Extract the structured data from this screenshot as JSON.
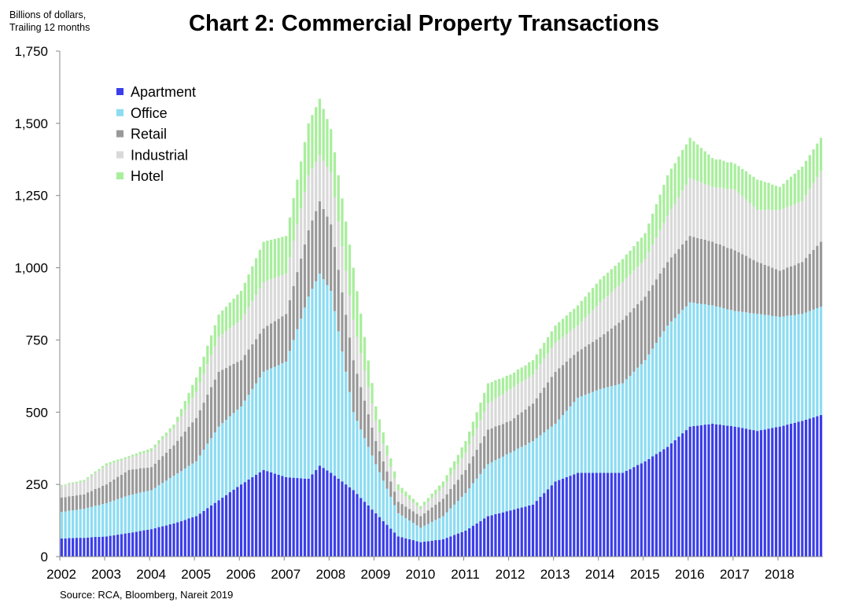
{
  "chart_data": {
    "type": "bar",
    "stacked": true,
    "title": "Chart 2: Commercial Property Transactions",
    "ylabel": "Billions of dollars, Trailing 12 months",
    "ylabel_lines": [
      "Billions of dollars,",
      "Trailing 12 months"
    ],
    "source": "Source: RCA, Bloomberg, Nareit 2019",
    "frequency": "monthly",
    "period": [
      "2002-01",
      "2018-12"
    ],
    "ylim": [
      0,
      1750
    ],
    "yticks": [
      "0",
      "250",
      "500",
      "750",
      "1,000",
      "1,250",
      "1,500",
      "1,750"
    ],
    "ytick_values": [
      0,
      250,
      500,
      750,
      1000,
      1250,
      1500,
      1750
    ],
    "xticks": [
      "2002",
      "2003",
      "2004",
      "2005",
      "2006",
      "2007",
      "2008",
      "2009",
      "2010",
      "2011",
      "2012",
      "2013",
      "2014",
      "2015",
      "2016",
      "2017",
      "2018"
    ],
    "grid": false,
    "legend_position": "top-left",
    "series": [
      {
        "name": "Apartment",
        "color": "#3a3ee8",
        "values": [
          63,
          63,
          64,
          64,
          65,
          65,
          65,
          66,
          67,
          68,
          68,
          69,
          70,
          72,
          74,
          76,
          78,
          80,
          82,
          84,
          86,
          89,
          91,
          93,
          95,
          98,
          102,
          105,
          108,
          112,
          115,
          119,
          123,
          127,
          132,
          136,
          140,
          149,
          158,
          168,
          177,
          186,
          195,
          204,
          213,
          223,
          232,
          241,
          250,
          258,
          267,
          275,
          283,
          292,
          300,
          296,
          292,
          287,
          283,
          279,
          275,
          274,
          273,
          272,
          271,
          270,
          270,
          285,
          300,
          315,
          307,
          298,
          290,
          280,
          270,
          260,
          250,
          240,
          230,
          217,
          203,
          190,
          177,
          163,
          150,
          137,
          123,
          110,
          97,
          83,
          70,
          67,
          63,
          60,
          57,
          53,
          50,
          52,
          53,
          55,
          57,
          58,
          60,
          65,
          70,
          75,
          80,
          85,
          90,
          98,
          107,
          115,
          123,
          132,
          140,
          143,
          147,
          150,
          153,
          157,
          160,
          163,
          167,
          170,
          173,
          177,
          180,
          193,
          207,
          220,
          233,
          247,
          260,
          265,
          270,
          275,
          280,
          285,
          290,
          290,
          290,
          290,
          290,
          290,
          290,
          290,
          290,
          290,
          290,
          290,
          290,
          297,
          303,
          310,
          317,
          323,
          330,
          338,
          347,
          355,
          363,
          372,
          380,
          392,
          403,
          415,
          427,
          438,
          450,
          452,
          453,
          455,
          457,
          458,
          460,
          458,
          457,
          455,
          453,
          452,
          450,
          448,
          445,
          443,
          440,
          438,
          435,
          438,
          440,
          443,
          445,
          448,
          450,
          453,
          457,
          460,
          463,
          467,
          470,
          474,
          478,
          482,
          486,
          490
        ]
      },
      {
        "name": "Office",
        "color": "#8cdcf2",
        "values": [
          92,
          93,
          95,
          96,
          97,
          99,
          100,
          103,
          105,
          108,
          110,
          113,
          115,
          118,
          120,
          123,
          125,
          128,
          130,
          131,
          132,
          133,
          133,
          134,
          135,
          140,
          145,
          150,
          155,
          160,
          165,
          169,
          173,
          178,
          182,
          186,
          190,
          201,
          212,
          223,
          233,
          244,
          255,
          258,
          260,
          263,
          265,
          268,
          270,
          282,
          293,
          305,
          317,
          328,
          340,
          350,
          360,
          370,
          380,
          390,
          400,
          438,
          477,
          515,
          553,
          592,
          630,
          642,
          653,
          665,
          653,
          642,
          630,
          570,
          510,
          450,
          390,
          330,
          270,
          253,
          237,
          220,
          203,
          187,
          170,
          155,
          140,
          125,
          110,
          95,
          80,
          75,
          70,
          65,
          60,
          55,
          50,
          55,
          60,
          65,
          70,
          75,
          80,
          88,
          97,
          105,
          113,
          122,
          130,
          138,
          147,
          155,
          163,
          172,
          180,
          183,
          187,
          190,
          193,
          197,
          200,
          203,
          207,
          210,
          213,
          217,
          220,
          217,
          213,
          210,
          207,
          203,
          200,
          210,
          220,
          230,
          240,
          250,
          260,
          265,
          270,
          275,
          280,
          285,
          290,
          293,
          297,
          300,
          303,
          307,
          310,
          317,
          323,
          330,
          337,
          343,
          350,
          362,
          373,
          385,
          397,
          408,
          420,
          422,
          423,
          425,
          427,
          428,
          430,
          427,
          423,
          420,
          417,
          413,
          410,
          408,
          407,
          405,
          403,
          402,
          400,
          401,
          402,
          403,
          403,
          404,
          405,
          401,
          397,
          393,
          388,
          384,
          380,
          378,
          377,
          375,
          373,
          372,
          370,
          371,
          372,
          373,
          374,
          375
        ]
      },
      {
        "name": "Retail",
        "color": "#999999",
        "values": [
          50,
          50,
          50,
          50,
          50,
          50,
          50,
          53,
          55,
          58,
          60,
          63,
          65,
          69,
          73,
          77,
          80,
          84,
          88,
          87,
          85,
          84,
          83,
          81,
          80,
          84,
          88,
          93,
          97,
          101,
          105,
          113,
          120,
          128,
          135,
          143,
          150,
          157,
          163,
          170,
          177,
          183,
          190,
          185,
          180,
          175,
          170,
          165,
          160,
          158,
          157,
          155,
          153,
          152,
          150,
          153,
          155,
          158,
          160,
          163,
          165,
          176,
          187,
          198,
          208,
          219,
          230,
          237,
          243,
          250,
          243,
          237,
          230,
          222,
          213,
          205,
          197,
          188,
          180,
          163,
          147,
          130,
          113,
          97,
          80,
          73,
          67,
          60,
          53,
          47,
          40,
          40,
          40,
          40,
          40,
          40,
          40,
          43,
          47,
          50,
          53,
          57,
          60,
          63,
          67,
          70,
          73,
          77,
          80,
          87,
          93,
          100,
          107,
          113,
          120,
          118,
          117,
          115,
          113,
          112,
          110,
          113,
          117,
          120,
          123,
          127,
          130,
          138,
          147,
          155,
          163,
          172,
          180,
          177,
          173,
          170,
          167,
          163,
          160,
          163,
          167,
          170,
          173,
          177,
          180,
          187,
          193,
          200,
          207,
          213,
          220,
          220,
          220,
          220,
          220,
          220,
          220,
          220,
          220,
          220,
          220,
          220,
          220,
          222,
          223,
          225,
          227,
          228,
          230,
          228,
          227,
          225,
          223,
          222,
          220,
          218,
          217,
          215,
          213,
          212,
          210,
          205,
          200,
          195,
          190,
          185,
          180,
          177,
          173,
          170,
          167,
          163,
          160,
          163,
          167,
          170,
          173,
          177,
          180,
          189,
          198,
          207,
          216,
          225
        ]
      },
      {
        "name": "Industrial",
        "color": "#d9d9d9",
        "values": [
          40,
          41,
          42,
          43,
          43,
          44,
          45,
          48,
          52,
          55,
          58,
          62,
          65,
          61,
          58,
          54,
          50,
          47,
          43,
          45,
          47,
          49,
          51,
          53,
          55,
          56,
          57,
          58,
          58,
          59,
          60,
          65,
          70,
          75,
          80,
          85,
          90,
          95,
          100,
          105,
          110,
          115,
          120,
          123,
          127,
          130,
          133,
          137,
          140,
          143,
          147,
          150,
          153,
          157,
          160,
          157,
          153,
          150,
          147,
          143,
          140,
          148,
          157,
          165,
          173,
          182,
          190,
          180,
          170,
          160,
          167,
          173,
          180,
          173,
          167,
          160,
          153,
          147,
          140,
          128,
          117,
          105,
          93,
          82,
          70,
          65,
          60,
          55,
          50,
          45,
          40,
          38,
          35,
          33,
          30,
          28,
          25,
          28,
          30,
          33,
          35,
          38,
          40,
          43,
          47,
          50,
          53,
          57,
          60,
          65,
          70,
          75,
          80,
          85,
          90,
          93,
          97,
          100,
          103,
          107,
          110,
          108,
          107,
          105,
          103,
          102,
          100,
          100,
          100,
          100,
          100,
          100,
          100,
          98,
          97,
          95,
          93,
          92,
          90,
          95,
          100,
          105,
          110,
          115,
          120,
          122,
          123,
          125,
          127,
          128,
          130,
          130,
          130,
          130,
          130,
          130,
          130,
          135,
          140,
          145,
          150,
          155,
          160,
          167,
          173,
          180,
          187,
          193,
          200,
          198,
          197,
          195,
          193,
          192,
          190,
          193,
          197,
          200,
          203,
          207,
          210,
          205,
          200,
          195,
          190,
          185,
          180,
          185,
          190,
          195,
          200,
          205,
          210,
          210,
          210,
          210,
          210,
          210,
          210,
          217,
          224,
          231,
          238,
          245
        ]
      },
      {
        "name": "Hotel",
        "color": "#a8ee9c",
        "values": [
          3,
          3,
          4,
          4,
          4,
          5,
          5,
          5,
          6,
          6,
          7,
          7,
          8,
          7,
          7,
          6,
          6,
          5,
          5,
          6,
          7,
          8,
          8,
          9,
          10,
          10,
          11,
          11,
          11,
          12,
          12,
          18,
          25,
          31,
          37,
          44,
          50,
          55,
          59,
          64,
          69,
          73,
          78,
          82,
          85,
          89,
          93,
          96,
          100,
          107,
          113,
          120,
          127,
          133,
          140,
          138,
          137,
          135,
          133,
          132,
          130,
          138,
          147,
          155,
          163,
          172,
          180,
          185,
          190,
          195,
          180,
          165,
          150,
          155,
          160,
          165,
          170,
          175,
          180,
          158,
          137,
          115,
          93,
          72,
          50,
          45,
          40,
          35,
          30,
          25,
          20,
          18,
          17,
          15,
          13,
          12,
          10,
          12,
          13,
          15,
          17,
          18,
          20,
          23,
          27,
          30,
          33,
          37,
          40,
          45,
          50,
          55,
          60,
          65,
          70,
          67,
          63,
          60,
          57,
          53,
          50,
          50,
          50,
          50,
          50,
          50,
          50,
          52,
          53,
          55,
          57,
          58,
          60,
          62,
          63,
          65,
          67,
          68,
          70,
          72,
          73,
          75,
          77,
          78,
          80,
          80,
          80,
          80,
          80,
          80,
          80,
          82,
          83,
          85,
          87,
          88,
          90,
          98,
          107,
          115,
          123,
          132,
          140,
          140,
          140,
          140,
          140,
          140,
          140,
          133,
          127,
          120,
          113,
          107,
          100,
          98,
          97,
          95,
          93,
          92,
          90,
          93,
          95,
          98,
          100,
          103,
          105,
          101,
          97,
          93,
          88,
          84,
          80,
          87,
          93,
          100,
          107,
          113,
          120,
          119,
          118,
          117,
          116,
          115
        ]
      }
    ]
  }
}
